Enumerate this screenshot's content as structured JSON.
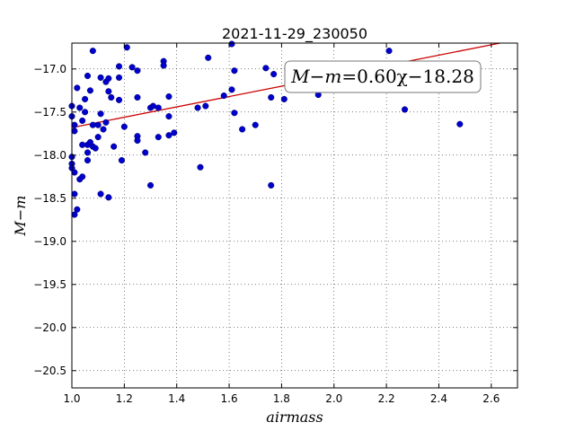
{
  "chart_data": {
    "type": "scatter",
    "title": "2021-11-29_230050",
    "xlabel": "airmass",
    "ylabel": "M−m",
    "xlim": [
      1.0,
      2.7
    ],
    "ylim": [
      -20.7,
      -16.7
    ],
    "y_inverted": true,
    "grid": true,
    "xticks": [
      1.0,
      1.2,
      1.4,
      1.6,
      1.8,
      2.0,
      2.2,
      2.4,
      2.6
    ],
    "xtick_labels": [
      "1.0",
      "1.2",
      "1.4",
      "1.6",
      "1.8",
      "2.0",
      "2.2",
      "2.4",
      "2.6"
    ],
    "yticks": [
      -17.0,
      -17.5,
      -18.0,
      -18.5,
      -19.0,
      -19.5,
      -20.0,
      -20.5
    ],
    "ytick_labels": [
      "−17.0",
      "−17.5",
      "−18.0",
      "−18.5",
      "−19.0",
      "−19.5",
      "−20.0",
      "−20.5"
    ],
    "colors": {
      "points": "#0000cc",
      "fit_line": "#cc0000"
    },
    "fit": {
      "slope": 0.6,
      "intercept": -18.28,
      "label_lhs": "M−m",
      "label_op": "=",
      "label_rhs": "0.60χ−18.28"
    },
    "series": [
      {
        "points": [
          [
            1.0,
            -17.43
          ],
          [
            1.0,
            -17.55
          ],
          [
            1.0,
            -18.02
          ],
          [
            1.0,
            -18.1
          ],
          [
            1.0,
            -18.15
          ],
          [
            1.01,
            -17.65
          ],
          [
            1.01,
            -17.72
          ],
          [
            1.01,
            -18.2
          ],
          [
            1.01,
            -18.45
          ],
          [
            1.01,
            -18.69
          ],
          [
            1.02,
            -17.22
          ],
          [
            1.02,
            -18.63
          ],
          [
            1.03,
            -17.45
          ],
          [
            1.03,
            -18.28
          ],
          [
            1.04,
            -17.6
          ],
          [
            1.04,
            -17.88
          ],
          [
            1.04,
            -18.25
          ],
          [
            1.05,
            -17.35
          ],
          [
            1.05,
            -17.5
          ],
          [
            1.06,
            -17.08
          ],
          [
            1.06,
            -17.88
          ],
          [
            1.06,
            -17.97
          ],
          [
            1.06,
            -18.06
          ],
          [
            1.07,
            -17.25
          ],
          [
            1.07,
            -17.85
          ],
          [
            1.08,
            -16.79
          ],
          [
            1.08,
            -17.65
          ],
          [
            1.08,
            -17.9
          ],
          [
            1.09,
            -17.92
          ],
          [
            1.1,
            -17.65
          ],
          [
            1.1,
            -17.79
          ],
          [
            1.11,
            -17.1
          ],
          [
            1.11,
            -17.52
          ],
          [
            1.11,
            -18.45
          ],
          [
            1.12,
            -17.7
          ],
          [
            1.13,
            -17.62
          ],
          [
            1.13,
            -17.15
          ],
          [
            1.14,
            -17.26
          ],
          [
            1.14,
            -17.11
          ],
          [
            1.14,
            -18.49
          ],
          [
            1.15,
            -17.33
          ],
          [
            1.16,
            -17.9
          ],
          [
            1.18,
            -16.97
          ],
          [
            1.18,
            -17.1
          ],
          [
            1.18,
            -17.36
          ],
          [
            1.19,
            -18.06
          ],
          [
            1.2,
            -17.67
          ],
          [
            1.21,
            -16.75
          ],
          [
            1.23,
            -16.98
          ],
          [
            1.25,
            -17.02
          ],
          [
            1.25,
            -17.33
          ],
          [
            1.25,
            -17.78
          ],
          [
            1.25,
            -17.83
          ],
          [
            1.28,
            -17.97
          ],
          [
            1.3,
            -17.45
          ],
          [
            1.3,
            -18.35
          ],
          [
            1.31,
            -17.43
          ],
          [
            1.33,
            -17.45
          ],
          [
            1.33,
            -17.79
          ],
          [
            1.35,
            -16.91
          ],
          [
            1.35,
            -16.96
          ],
          [
            1.37,
            -17.32
          ],
          [
            1.37,
            -17.55
          ],
          [
            1.37,
            -17.77
          ],
          [
            1.39,
            -17.74
          ],
          [
            1.48,
            -17.45
          ],
          [
            1.49,
            -18.14
          ],
          [
            1.51,
            -17.43
          ],
          [
            1.52,
            -16.87
          ],
          [
            1.58,
            -17.31
          ],
          [
            1.61,
            -16.71
          ],
          [
            1.61,
            -17.24
          ],
          [
            1.62,
            -17.51
          ],
          [
            1.62,
            -17.02
          ],
          [
            1.65,
            -17.7
          ],
          [
            1.7,
            -17.65
          ],
          [
            1.74,
            -16.99
          ],
          [
            1.76,
            -17.33
          ],
          [
            1.76,
            -18.35
          ],
          [
            1.77,
            -17.06
          ],
          [
            1.81,
            -17.35
          ],
          [
            1.94,
            -17.3
          ],
          [
            2.21,
            -16.79
          ],
          [
            2.27,
            -17.47
          ],
          [
            2.48,
            -17.64
          ]
        ]
      }
    ]
  }
}
